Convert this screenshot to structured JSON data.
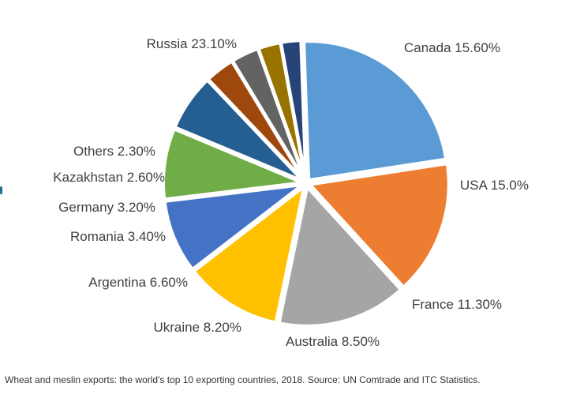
{
  "chart_data": {
    "type": "pie",
    "title": "",
    "legend": "none",
    "slices": [
      {
        "label": "Russia 23.10%",
        "value": 23.1,
        "color": "#5b9bd5"
      },
      {
        "label": "Canada 15.60%",
        "value": 15.6,
        "color": "#ed7d31"
      },
      {
        "label": "USA 15.0%",
        "value": 15.0,
        "color": "#a5a5a5"
      },
      {
        "label": "France 11.30%",
        "value": 11.3,
        "color": "#ffc000"
      },
      {
        "label": "Australia 8.50%",
        "value": 8.5,
        "color": "#4472c4"
      },
      {
        "label": "Ukraine 8.20%",
        "value": 8.2,
        "color": "#70ad47"
      },
      {
        "label": "Argentina 6.60%",
        "value": 6.6,
        "color": "#255e91"
      },
      {
        "label": "Romania 3.40%",
        "value": 3.4,
        "color": "#9e480e"
      },
      {
        "label": "Germany 3.20%",
        "value": 3.2,
        "color": "#636363"
      },
      {
        "label": "Kazakhstan 2.60%",
        "value": 2.6,
        "color": "#997300"
      },
      {
        "label": "Others 2.30%",
        "value": 2.3,
        "color": "#264478"
      }
    ]
  },
  "caption": "Wheat and meslin exports: the world's top 10 exporting countries, 2018. Source: UN Comtrade and ITC Statistics."
}
